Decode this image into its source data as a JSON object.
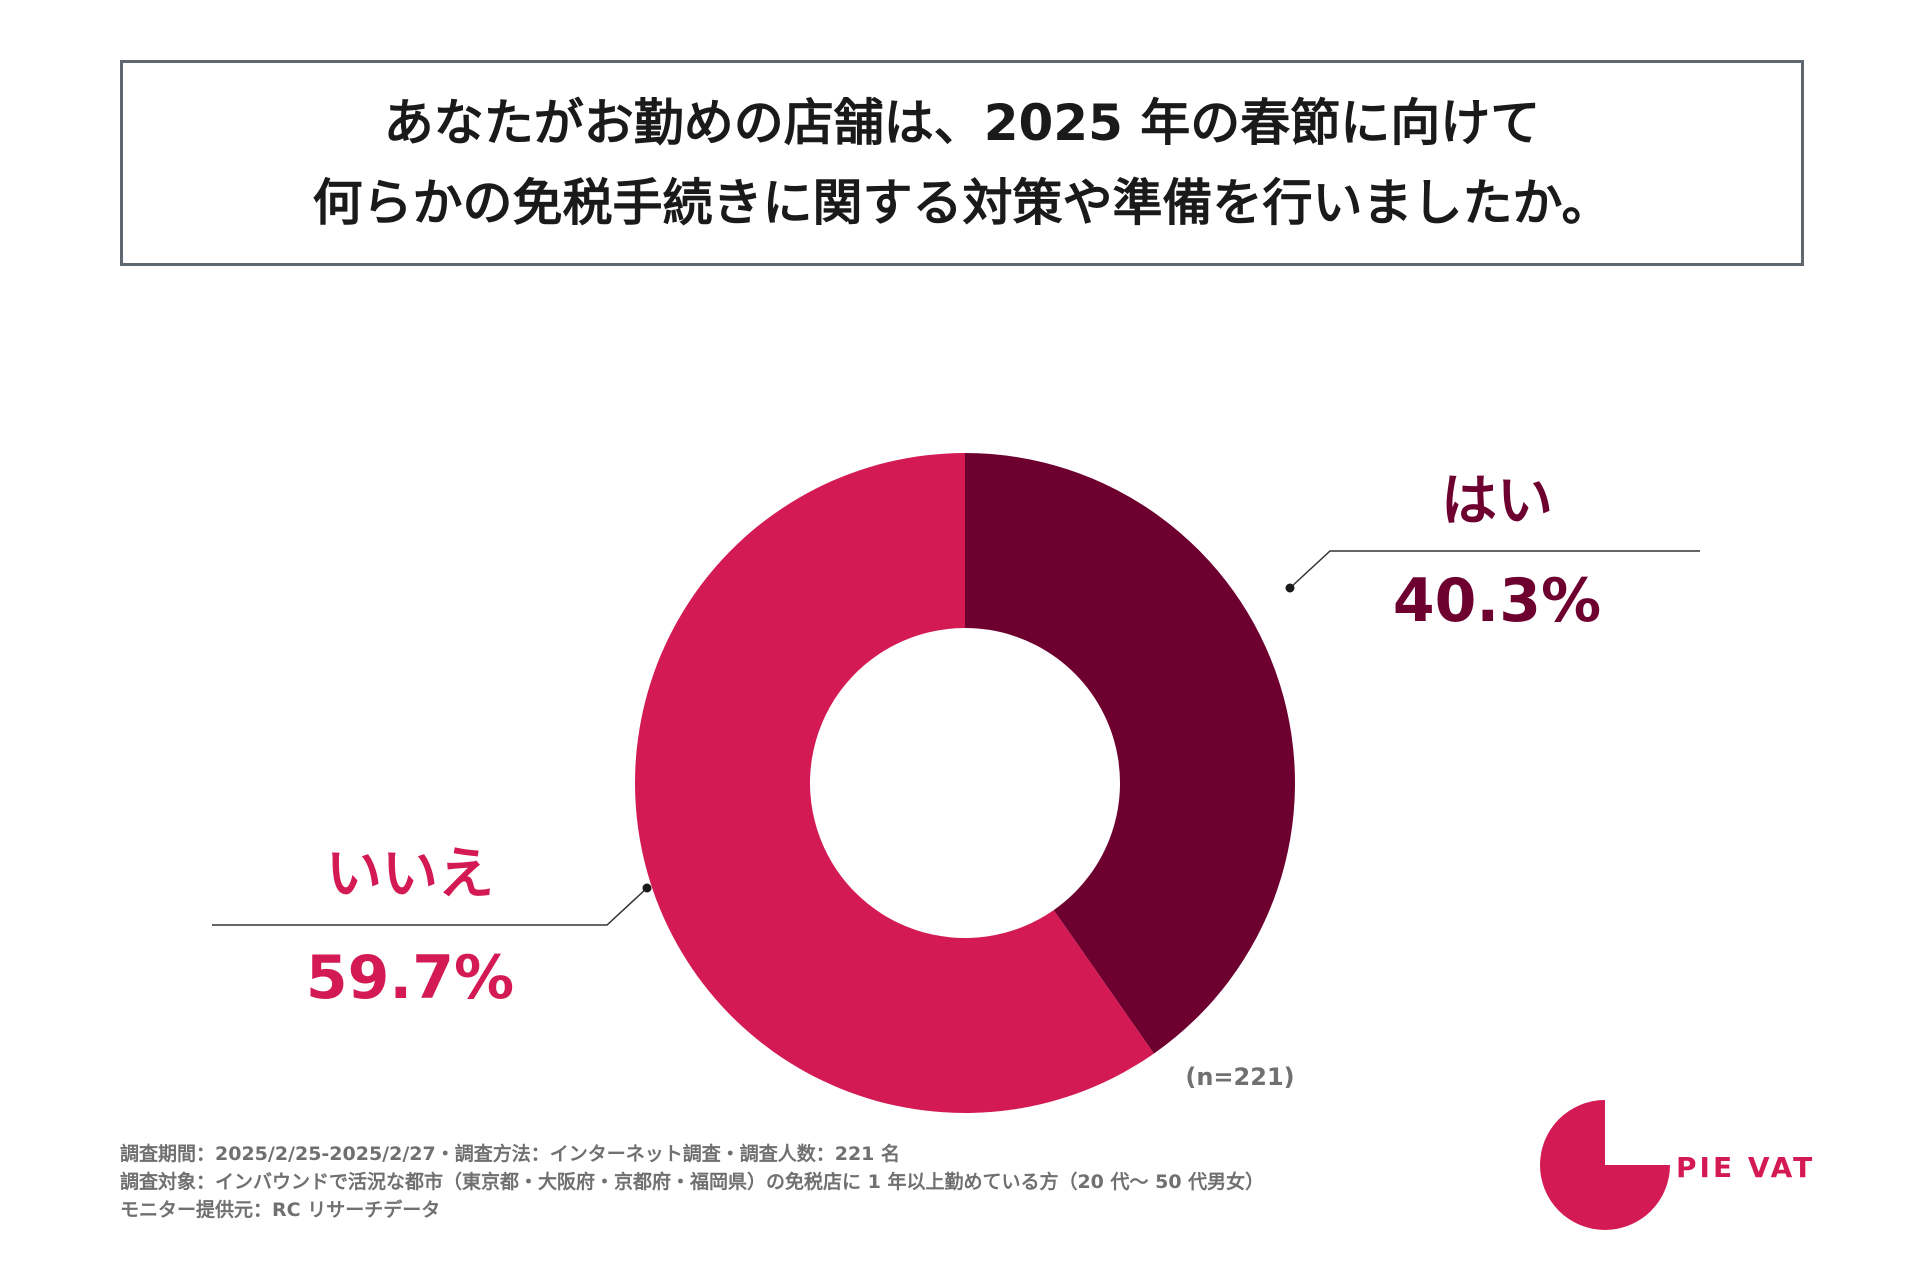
{
  "header": {
    "title_line1": "あなたがお勤めの店舗は、2025 年の春節に向けて",
    "title_line2": "何らかの免税手続きに関する対策や準備を行いましたか。"
  },
  "chart_data": {
    "type": "pie",
    "style": "donut",
    "title": "あなたがお勤めの店舗は、2025 年の春節に向けて何らかの免税手続きに関する対策や準備を行いましたか。",
    "slices": [
      {
        "label": "はい",
        "value": 40.3,
        "value_label": "40.3%",
        "color": "#6e0030"
      },
      {
        "label": "いいえ",
        "value": 59.7,
        "value_label": "59.7%",
        "color": "#d41a54"
      }
    ],
    "sample_size": "(n=221)"
  },
  "footnotes": {
    "line1": "調査期間：2025/2/25-2025/2/27・調査方法：インターネット調査・調査人数：221 名",
    "line2": "調査対象：インバウンドで活況な都市（東京都・大阪府・京都府・福岡県）の免税店に 1 年以上勤めている方（20 代〜 50 代男女）",
    "line3": "モニター提供元：RC リサーチデータ"
  },
  "brand": {
    "name": "PIE VAT",
    "color": "#d41a54"
  }
}
